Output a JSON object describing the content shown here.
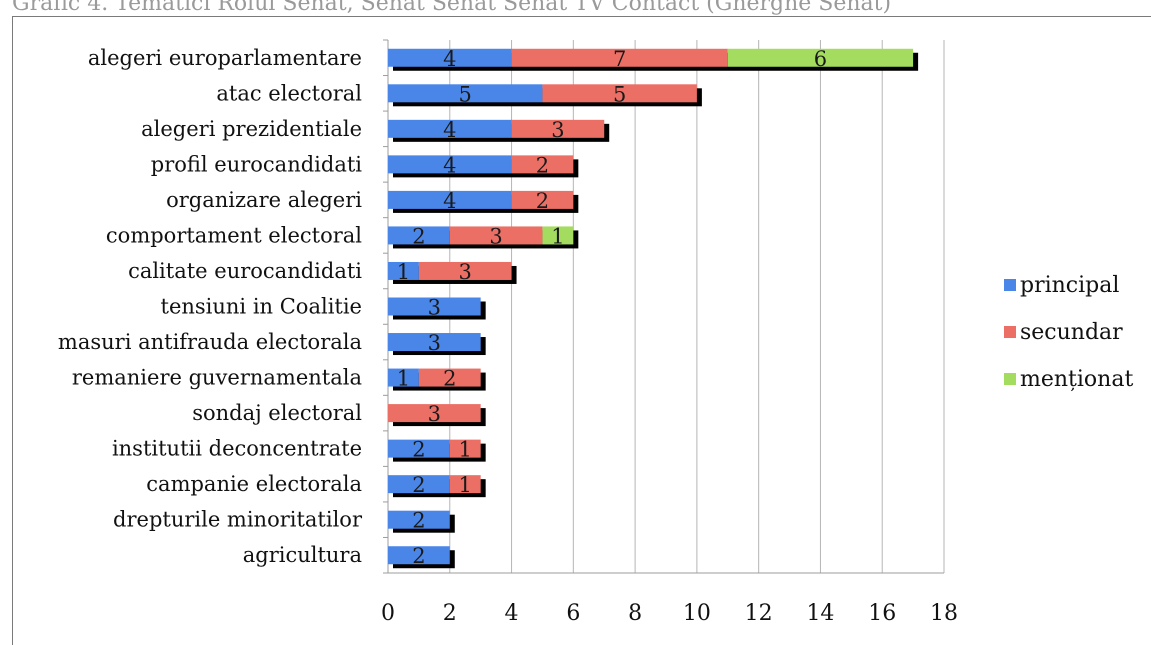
{
  "top_title": "Grafic 4. Tematici Rolul Senat, Senat Senat Senat TV Contact (Gherghe Senat)",
  "chart_data": {
    "type": "bar",
    "orientation": "horizontal",
    "stacked": true,
    "categories": [
      "alegeri europarlamentare",
      "atac electoral",
      "alegeri prezidentiale",
      "profil eurocandidati",
      "organizare alegeri",
      "comportament electoral",
      "calitate eurocandidati",
      "tensiuni in Coalitie",
      "masuri antifrauda electorala",
      "remaniere guvernamentala",
      "sondaj electoral",
      "institutii deconcentrate",
      "campanie electorala",
      "drepturile minoritatilor",
      "agricultura"
    ],
    "series": [
      {
        "name": "principal",
        "color": "#4a86e8",
        "values": [
          4,
          5,
          4,
          4,
          4,
          2,
          1,
          3,
          3,
          1,
          0,
          2,
          2,
          2,
          2
        ]
      },
      {
        "name": "secundar",
        "color": "#ec6f66",
        "values": [
          7,
          5,
          3,
          2,
          2,
          3,
          3,
          0,
          0,
          2,
          3,
          1,
          1,
          0,
          0
        ]
      },
      {
        "name": "menționat",
        "color": "#a4dc60",
        "values": [
          6,
          0,
          0,
          0,
          0,
          1,
          0,
          0,
          0,
          0,
          0,
          0,
          0,
          0,
          0
        ]
      }
    ],
    "xlim": [
      0,
      18
    ],
    "xticks": [
      "0",
      "2",
      "4",
      "6",
      "8",
      "10",
      "12",
      "14",
      "16",
      "18"
    ],
    "grid": "vertical",
    "legend": "right"
  }
}
